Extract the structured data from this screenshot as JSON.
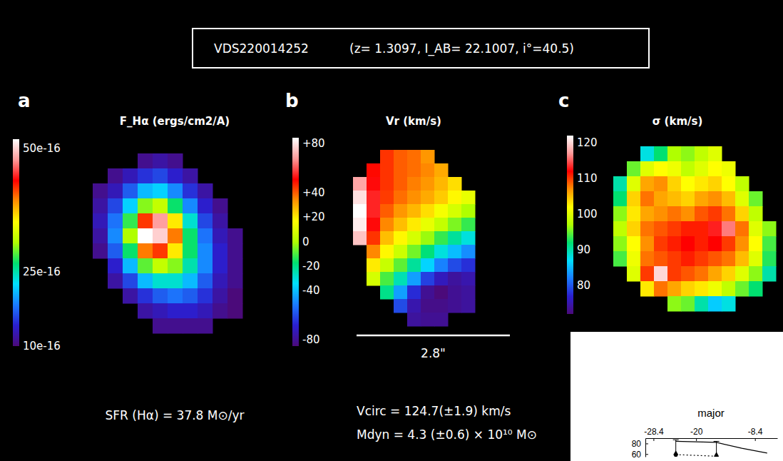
{
  "header": {
    "object": "VDS220014252",
    "parameters": "(z= 1.3097, I_AB= 22.1007, i°=40.5)"
  },
  "chart_data": [
    {
      "type": "heatmap",
      "panel_label": "a",
      "title": "F_Hα (ergs/cm2/A)",
      "annotations": [
        "SFR (Hα) = 37.8 M⊙/yr"
      ],
      "color_range": [
        1e-15,
        5.2e-15
      ],
      "color_ticks": [
        {
          "value": 5e-15,
          "label": "50e-16"
        },
        {
          "value": 2.5e-15,
          "label": "25e-16"
        },
        {
          "value": 1e-15,
          "label": "10e-16"
        }
      ],
      "cells": [
        [
          null,
          null,
          null,
          1.1e-15,
          1.2e-15,
          1.1e-15,
          null,
          null,
          null,
          null
        ],
        [
          null,
          1.1e-15,
          1.3e-15,
          1.5e-15,
          1.6e-15,
          1.4e-15,
          1.2e-15,
          null,
          null,
          null
        ],
        [
          1.1e-15,
          1.3e-15,
          1.7e-15,
          2.1e-15,
          2.2e-15,
          1.9e-15,
          1.5e-15,
          1.2e-15,
          null,
          null
        ],
        [
          1.2e-15,
          1.6e-15,
          2.2e-15,
          3e-15,
          3.2e-15,
          2.7e-15,
          1.9e-15,
          1.4e-15,
          1.1e-15,
          null
        ],
        [
          1.3e-15,
          1.8e-15,
          2.8e-15,
          4.2e-15,
          4.8e-15,
          3.6e-15,
          2.4e-15,
          1.6e-15,
          1.2e-15,
          null
        ],
        [
          1.2e-15,
          1.9e-15,
          3.1e-15,
          5.2e-15,
          5e-15,
          4e-15,
          2.7e-15,
          1.8e-15,
          1.3e-15,
          1.1e-15
        ],
        [
          1.1e-15,
          1.7e-15,
          2.7e-15,
          4e-15,
          4.2e-15,
          3.6e-15,
          2.7e-15,
          1.9e-15,
          1.4e-15,
          1.1e-15
        ],
        [
          null,
          1.4e-15,
          2.1e-15,
          2.9e-15,
          3.2e-15,
          3e-15,
          2.5e-15,
          1.9e-15,
          1.4e-15,
          1.1e-15
        ],
        [
          null,
          1.2e-15,
          1.6e-15,
          2.1e-15,
          2.4e-15,
          2.4e-15,
          2.1e-15,
          1.7e-15,
          1.3e-15,
          1.1e-15
        ],
        [
          null,
          null,
          1.2e-15,
          1.5e-15,
          1.7e-15,
          1.8e-15,
          1.7e-15,
          1.5e-15,
          1.2e-15,
          1e-15
        ],
        [
          null,
          null,
          null,
          1.2e-15,
          1.3e-15,
          1.4e-15,
          1.4e-15,
          1.3e-15,
          1.1e-15,
          1e-15
        ],
        [
          null,
          null,
          null,
          null,
          1.1e-15,
          1.1e-15,
          1.1e-15,
          1.1e-15,
          null,
          null
        ]
      ]
    },
    {
      "type": "heatmap",
      "panel_label": "b",
      "title": "Vr (km/s)",
      "annotations": [
        "Vcirc = 124.7(±1.9) km/s",
        "Mdyn = 4.3 (±0.6) × 10¹⁰ M⊙"
      ],
      "scale_label": "2.8\"",
      "color_range": [
        -85,
        85
      ],
      "color_ticks": [
        {
          "value": 80,
          "label": "+80"
        },
        {
          "value": 40,
          "label": "+40"
        },
        {
          "value": 20,
          "label": "+20"
        },
        0,
        -20,
        -40,
        -80
      ],
      "cells": [
        [
          null,
          null,
          45,
          40,
          38,
          33,
          null,
          null,
          null
        ],
        [
          null,
          50,
          45,
          40,
          38,
          35,
          30,
          null,
          null
        ],
        [
          70,
          52,
          45,
          40,
          36,
          33,
          28,
          22,
          null
        ],
        [
          80,
          55,
          44,
          38,
          34,
          30,
          25,
          18,
          12
        ],
        [
          85,
          55,
          40,
          33,
          28,
          22,
          15,
          8,
          0
        ],
        [
          82,
          52,
          35,
          27,
          20,
          12,
          4,
          -5,
          -12
        ],
        [
          75,
          45,
          27,
          18,
          8,
          -2,
          -12,
          -22,
          -30
        ],
        [
          null,
          35,
          18,
          6,
          -6,
          -18,
          -30,
          -40,
          -48
        ],
        [
          null,
          20,
          5,
          -8,
          -22,
          -36,
          -50,
          -60,
          -65
        ],
        [
          null,
          8,
          -10,
          -25,
          -45,
          -62,
          -72,
          -78,
          -75
        ],
        [
          null,
          null,
          -20,
          -45,
          -66,
          -80,
          -85,
          -80,
          -78
        ],
        [
          null,
          null,
          null,
          -60,
          -75,
          -82,
          -82,
          -80,
          -78
        ],
        [
          null,
          null,
          null,
          null,
          -78,
          -80,
          -80,
          null,
          null
        ]
      ]
    },
    {
      "type": "heatmap",
      "panel_label": "c",
      "title": "σ (km/s)",
      "color_range": [
        72,
        122
      ],
      "color_ticks": [
        120,
        110,
        100,
        90,
        80
      ],
      "cells": [
        [
          null,
          null,
          88,
          92,
          97,
          96,
          98,
          100,
          null,
          null,
          null,
          null
        ],
        [
          null,
          95,
          100,
          102,
          101,
          98,
          100,
          102,
          101,
          null,
          null,
          null
        ],
        [
          90,
          100,
          106,
          107,
          104,
          102,
          103,
          104,
          102,
          98,
          null,
          null
        ],
        [
          92,
          104,
          108,
          106,
          105,
          104,
          106,
          107,
          105,
          100,
          95,
          null
        ],
        [
          96,
          103,
          106,
          107,
          108,
          107,
          109,
          110,
          108,
          104,
          98,
          null
        ],
        [
          98,
          104,
          108,
          109,
          110,
          111,
          111,
          113,
          116,
          108,
          100,
          96
        ],
        [
          96,
          102,
          107,
          110,
          111,
          112,
          111,
          112,
          110,
          107,
          102,
          94
        ],
        [
          94,
          101,
          108,
          109,
          110,
          111,
          110,
          109,
          108,
          105,
          100,
          93
        ],
        [
          null,
          100,
          110,
          120,
          110,
          109,
          108,
          106,
          104,
          100,
          96,
          90
        ],
        [
          null,
          null,
          103,
          108,
          106,
          104,
          103,
          101,
          98,
          95,
          92,
          null
        ],
        [
          null,
          null,
          null,
          null,
          96,
          95,
          90,
          86,
          88,
          null,
          null,
          null
        ]
      ]
    },
    {
      "type": "line",
      "title": "major",
      "xlim": [
        -30,
        -4
      ],
      "xticks": [
        -28.4,
        -20,
        -8.4
      ],
      "ylim": [
        55,
        90
      ],
      "yticks": [
        60,
        80
      ],
      "series": [
        {
          "color": "#000000",
          "line_style": "solid",
          "x": [
            -24,
            -16,
            -11,
            -6
          ],
          "values": [
            84,
            82,
            71,
            62
          ]
        },
        {
          "color": "#000000",
          "line_style": "dotted",
          "marker": "diamond",
          "x": [
            -24,
            -16
          ],
          "values": [
            59,
            56
          ],
          "errors": [
            28,
            28
          ]
        }
      ]
    }
  ]
}
